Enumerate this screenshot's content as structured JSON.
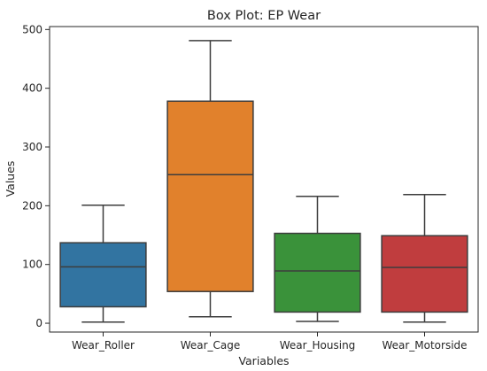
{
  "chart_data": {
    "type": "box",
    "title": "Box Plot: EP Wear",
    "xlabel": "Variables",
    "ylabel": "Values",
    "ylim": [
      -15,
      505
    ],
    "yticks": [
      0,
      100,
      200,
      300,
      400,
      500
    ],
    "grid": false,
    "categories": [
      "Wear_Roller",
      "Wear_Cage",
      "Wear_Housing",
      "Wear_Motorside"
    ],
    "boxes": [
      {
        "name": "Wear_Roller",
        "whisker_low": 2,
        "q1": 28,
        "median": 96,
        "q3": 137,
        "whisker_high": 201,
        "color": "#3274a1"
      },
      {
        "name": "Wear_Cage",
        "whisker_low": 11,
        "q1": 54,
        "median": 253,
        "q3": 378,
        "whisker_high": 481,
        "color": "#e1812c"
      },
      {
        "name": "Wear_Housing",
        "whisker_low": 3,
        "q1": 19,
        "median": 89,
        "q3": 153,
        "whisker_high": 216,
        "color": "#3a923a"
      },
      {
        "name": "Wear_Motorside",
        "whisker_low": 2,
        "q1": 19,
        "median": 95,
        "q3": 149,
        "whisker_high": 219,
        "color": "#c03d3e"
      }
    ]
  }
}
